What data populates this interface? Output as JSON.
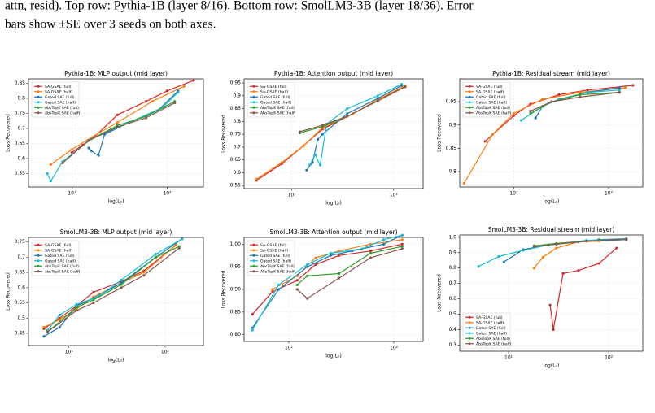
{
  "caption": [
    "attn, resid). Top row: Pythia-1B (layer 8/16). Bottom row: SmolLM3-3B (layer 18/36). Error",
    "bars show ±SE over 3 seeds on both axes."
  ],
  "chart_data": [
    {
      "type": "line",
      "title": "Pythia-1B: MLP output (mid layer)",
      "xlabel": "log(L₀)",
      "ylabel": "Loss Recovered",
      "xscale": "log",
      "grid": true,
      "legend": "upper left",
      "xlim": [
        3.5,
        240
      ],
      "ylim": [
        0.505,
        0.865
      ],
      "xticks": [
        {
          "value": 10,
          "label": "10¹"
        },
        {
          "value": 100,
          "label": "10²"
        }
      ],
      "yticks": [
        0.55,
        0.6,
        0.65,
        0.7,
        0.75,
        0.8,
        0.85
      ],
      "series": [
        {
          "name": "SA-GSAE (full)",
          "color": "#d62728",
          "x": [
            10,
            13,
            17,
            30,
            60,
            100,
            190
          ],
          "values": [
            0.62,
            0.645,
            0.67,
            0.745,
            0.79,
            0.825,
            0.86
          ]
        },
        {
          "name": "SA-GSAE (half)",
          "color": "#ff7f0e",
          "x": [
            6,
            10,
            16,
            30,
            70,
            150
          ],
          "values": [
            0.58,
            0.63,
            0.67,
            0.72,
            0.79,
            0.84
          ]
        },
        {
          "name": "Gated SAE (full)",
          "color": "#1f77b4",
          "x": [
            15,
            16,
            19,
            22,
            40,
            80,
            130
          ],
          "values": [
            0.635,
            0.625,
            0.61,
            0.68,
            0.72,
            0.76,
            0.825
          ]
        },
        {
          "name": "Gated SAE (half)",
          "color": "#17becf",
          "x": [
            5.5,
            6,
            8,
            16,
            40,
            90,
            130
          ],
          "values": [
            0.55,
            0.525,
            0.59,
            0.665,
            0.72,
            0.77,
            0.82
          ]
        },
        {
          "name": "AbsTopK SAE (full)",
          "color": "#2ca02c",
          "x": [
            8,
            15,
            30,
            60,
            120
          ],
          "values": [
            0.585,
            0.66,
            0.71,
            0.74,
            0.79
          ]
        },
        {
          "name": "AbsTopK SAE (half)",
          "color": "#8c564b",
          "x": [
            8,
            15,
            30,
            60,
            120
          ],
          "values": [
            0.585,
            0.66,
            0.705,
            0.735,
            0.785
          ]
        }
      ]
    },
    {
      "type": "line",
      "title": "Pythia-1B: Attention output (mid layer)",
      "xlabel": "log(L₀)",
      "ylabel": "Loss Recovered",
      "xscale": "log",
      "grid": true,
      "legend": "upper left",
      "xlim": [
        3.4,
        195
      ],
      "ylim": [
        0.538,
        0.966
      ],
      "xticks": [
        {
          "value": 10,
          "label": "10¹"
        },
        {
          "value": 100,
          "label": "10²"
        }
      ],
      "yticks": [
        0.55,
        0.6,
        0.65,
        0.7,
        0.75,
        0.8,
        0.85,
        0.9,
        0.95
      ],
      "series": [
        {
          "name": "SA-GSAE (full)",
          "color": "#d62728",
          "x": [
            4.5,
            8,
            13,
            20,
            40,
            70,
            130
          ],
          "values": [
            0.57,
            0.635,
            0.705,
            0.77,
            0.83,
            0.885,
            0.935
          ]
        },
        {
          "name": "SA-GSAE (half)",
          "color": "#ff7f0e",
          "x": [
            4.5,
            8,
            13,
            20,
            40,
            70,
            130
          ],
          "values": [
            0.575,
            0.64,
            0.705,
            0.775,
            0.83,
            0.885,
            0.94
          ]
        },
        {
          "name": "Gated SAE (full)",
          "color": "#1f77b4",
          "x": [
            14,
            16,
            18,
            20,
            35,
            70,
            120
          ],
          "values": [
            0.61,
            0.64,
            0.73,
            0.75,
            0.83,
            0.89,
            0.94
          ]
        },
        {
          "name": "Gated SAE (half)",
          "color": "#17becf",
          "x": [
            15,
            17,
            19,
            22,
            35,
            70,
            120
          ],
          "values": [
            0.63,
            0.67,
            0.63,
            0.79,
            0.85,
            0.9,
            0.945
          ]
        },
        {
          "name": "AbsTopK SAE (full)",
          "color": "#2ca02c",
          "x": [
            12,
            20,
            35,
            70,
            130
          ],
          "values": [
            0.755,
            0.78,
            0.82,
            0.88,
            0.935
          ]
        },
        {
          "name": "AbsTopK SAE (half)",
          "color": "#8c564b",
          "x": [
            12,
            20,
            35,
            70,
            130
          ],
          "values": [
            0.76,
            0.785,
            0.82,
            0.88,
            0.935
          ]
        }
      ]
    },
    {
      "type": "line",
      "title": "Pythia-1B: Residual stream (mid layer)",
      "xlabel": "log(L₀)",
      "ylabel": "Loss Recovered",
      "xscale": "log",
      "grid": true,
      "legend": "upper left",
      "xlim": [
        2.7,
        229
      ],
      "ylim": [
        0.767,
        0.999
      ],
      "xticks": [
        {
          "value": 10,
          "label": "10¹"
        },
        {
          "value": 100,
          "label": "10²"
        }
      ],
      "yticks": [
        0.8,
        0.85,
        0.9,
        0.95
      ],
      "series": [
        {
          "name": "SA-GSAE (full)",
          "color": "#d62728",
          "x": [
            5,
            10,
            15,
            30,
            60,
            180
          ],
          "values": [
            0.865,
            0.92,
            0.945,
            0.965,
            0.975,
            0.985
          ]
        },
        {
          "name": "SA-GSAE (half)",
          "color": "#ff7f0e",
          "x": [
            3,
            6,
            10,
            20,
            50,
            150
          ],
          "values": [
            0.775,
            0.88,
            0.925,
            0.955,
            0.97,
            0.98
          ]
        },
        {
          "name": "Gated SAE (full)",
          "color": "#1f77b4",
          "x": [
            17,
            20,
            30,
            60,
            130
          ],
          "values": [
            0.915,
            0.94,
            0.955,
            0.97,
            0.98
          ]
        },
        {
          "name": "Gated SAE (half)",
          "color": "#17becf",
          "x": [
            12,
            20,
            30,
            60,
            130
          ],
          "values": [
            0.91,
            0.94,
            0.955,
            0.97,
            0.975
          ]
        },
        {
          "name": "AbsTopK SAE (full)",
          "color": "#2ca02c",
          "x": [
            15,
            25,
            50,
            130
          ],
          "values": [
            0.925,
            0.95,
            0.965,
            0.97
          ]
        },
        {
          "name": "AbsTopK SAE (half)",
          "color": "#8c564b",
          "x": [
            15,
            25,
            50,
            130
          ],
          "values": [
            0.93,
            0.95,
            0.96,
            0.97
          ]
        }
      ]
    },
    {
      "type": "line",
      "title": "SmolLM3-3B: MLP output (mid layer)",
      "xlabel": "log(L₀)",
      "ylabel": "Loss Recovered",
      "xscale": "log",
      "grid": true,
      "legend": "upper left",
      "xlim": [
        3.8,
        250
      ],
      "ylim": [
        0.41,
        0.765
      ],
      "xticks": [
        {
          "value": 10,
          "label": "10¹"
        },
        {
          "value": 100,
          "label": "10²"
        }
      ],
      "yticks": [
        0.45,
        0.5,
        0.55,
        0.6,
        0.65,
        0.7,
        0.75
      ],
      "series": [
        {
          "name": "SA-GSAE (full)",
          "color": "#d62728",
          "x": [
            5.5,
            8,
            12,
            18,
            35,
            60,
            130
          ],
          "values": [
            0.465,
            0.5,
            0.54,
            0.585,
            0.62,
            0.655,
            0.74
          ]
        },
        {
          "name": "SA-GSAE (half)",
          "color": "#ff7f0e",
          "x": [
            5.5,
            8,
            12,
            18,
            35,
            60,
            130
          ],
          "values": [
            0.47,
            0.495,
            0.53,
            0.57,
            0.615,
            0.65,
            0.74
          ]
        },
        {
          "name": "Gated SAE (full)",
          "color": "#1f77b4",
          "x": [
            5.5,
            8,
            12,
            18,
            35,
            80,
            150
          ],
          "values": [
            0.44,
            0.47,
            0.54,
            0.565,
            0.615,
            0.7,
            0.76
          ]
        },
        {
          "name": "Gated SAE (half)",
          "color": "#17becf",
          "x": [
            6,
            8,
            12,
            20,
            35,
            80,
            150
          ],
          "values": [
            0.46,
            0.51,
            0.545,
            0.57,
            0.625,
            0.71,
            0.76
          ]
        },
        {
          "name": "AbsTopK SAE (full)",
          "color": "#2ca02c",
          "x": [
            6,
            12,
            18,
            35,
            80,
            140
          ],
          "values": [
            0.455,
            0.535,
            0.56,
            0.61,
            0.7,
            0.735
          ]
        },
        {
          "name": "AbsTopK SAE (half)",
          "color": "#8c564b",
          "x": [
            6,
            12,
            18,
            35,
            60,
            140
          ],
          "values": [
            0.455,
            0.525,
            0.55,
            0.6,
            0.64,
            0.73
          ]
        }
      ]
    },
    {
      "type": "line",
      "title": "SmolLM3-3B: Attention output (mid layer)",
      "xlabel": "log(L₀)",
      "ylabel": "Loss Recovered",
      "xscale": "log",
      "grid": true,
      "legend": "upper left",
      "xlim": [
        3.75,
        190
      ],
      "ylim": [
        0.785,
        1.015
      ],
      "xticks": [
        {
          "value": 10,
          "label": "10¹"
        },
        {
          "value": 100,
          "label": "10²"
        }
      ],
      "yticks": [
        {
          "value": 0.8,
          "label": "0.80"
        },
        0.85,
        {
          "value": 0.9,
          "label": "0.90"
        },
        0.95,
        {
          "value": 1,
          "label": "1.00"
        }
      ],
      "series": [
        {
          "name": "SA-GSAE (full)",
          "color": "#d62728",
          "x": [
            4.5,
            7,
            12,
            18,
            30,
            60,
            120
          ],
          "values": [
            0.845,
            0.895,
            0.92,
            0.955,
            0.975,
            0.985,
            1.0
          ]
        },
        {
          "name": "SA-GSAE (half)",
          "color": "#ff7f0e",
          "x": [
            7,
            12,
            18,
            30,
            60,
            120
          ],
          "values": [
            0.9,
            0.93,
            0.97,
            0.985,
            1.0,
            1.01
          ]
        },
        {
          "name": "Gated SAE (full)",
          "color": "#1f77b4",
          "x": [
            4.5,
            8,
            15,
            25,
            40,
            80,
            120
          ],
          "values": [
            0.815,
            0.9,
            0.95,
            0.975,
            0.985,
            1.0,
            1.02
          ]
        },
        {
          "name": "Gated SAE (half)",
          "color": "#17becf",
          "x": [
            4.5,
            8,
            15,
            25,
            50,
            80,
            120
          ],
          "values": [
            0.81,
            0.91,
            0.955,
            0.98,
            0.99,
            1.01,
            1.02
          ]
        },
        {
          "name": "AbsTopK SAE (full)",
          "color": "#2ca02c",
          "x": [
            12,
            15,
            30,
            60,
            120
          ],
          "values": [
            0.91,
            0.93,
            0.935,
            0.98,
            0.995
          ]
        },
        {
          "name": "AbsTopK SAE (half)",
          "color": "#8c564b",
          "x": [
            12,
            15,
            30,
            60,
            120
          ],
          "values": [
            0.9,
            0.88,
            0.925,
            0.97,
            0.99
          ]
        }
      ]
    },
    {
      "type": "line",
      "title": "SmolLM3-3B: Residual stream (mid layer)",
      "xlabel": "log(L₀)",
      "ylabel": "Loss Recovered",
      "xscale": "log",
      "grid": true,
      "legend": "lower left",
      "xlim": [
        3.25,
        219
      ],
      "ylim": [
        0.26,
        1.015
      ],
      "xticks": [
        {
          "value": 10,
          "label": "10¹"
        },
        {
          "value": 100,
          "label": "10²"
        }
      ],
      "yticks": [
        0.3,
        0.4,
        0.5,
        0.6,
        0.7,
        0.8,
        0.9,
        {
          "value": 1,
          "label": "1.0"
        }
      ],
      "series": [
        {
          "name": "SA-GSAE (full)",
          "color": "#d62728",
          "x": [
            26,
            28,
            35,
            50,
            80,
            120
          ],
          "values": [
            0.56,
            0.4,
            0.765,
            0.785,
            0.83,
            0.93
          ]
        },
        {
          "name": "SA-GSAE (half)",
          "color": "#ff7f0e",
          "x": [
            18,
            22,
            30,
            50,
            80
          ],
          "values": [
            0.8,
            0.87,
            0.93,
            0.97,
            0.975
          ]
        },
        {
          "name": "Gated SAE (full)",
          "color": "#1f77b4",
          "x": [
            9,
            14,
            25,
            50,
            80,
            150
          ],
          "values": [
            0.84,
            0.92,
            0.95,
            0.97,
            0.985,
            0.99
          ]
        },
        {
          "name": "Gated SAE (half)",
          "color": "#17becf",
          "x": [
            5,
            8,
            14,
            25,
            60,
            150
          ],
          "values": [
            0.81,
            0.875,
            0.915,
            0.95,
            0.98,
            0.985
          ]
        },
        {
          "name": "AbsTopK SAE (full)",
          "color": "#2ca02c",
          "x": [
            18,
            30,
            60,
            150
          ],
          "values": [
            0.945,
            0.96,
            0.975,
            0.985
          ]
        },
        {
          "name": "AbsTopK SAE (half)",
          "color": "#8c564b",
          "x": [
            18,
            30,
            60,
            150
          ],
          "values": [
            0.94,
            0.955,
            0.975,
            0.985
          ]
        }
      ]
    }
  ]
}
